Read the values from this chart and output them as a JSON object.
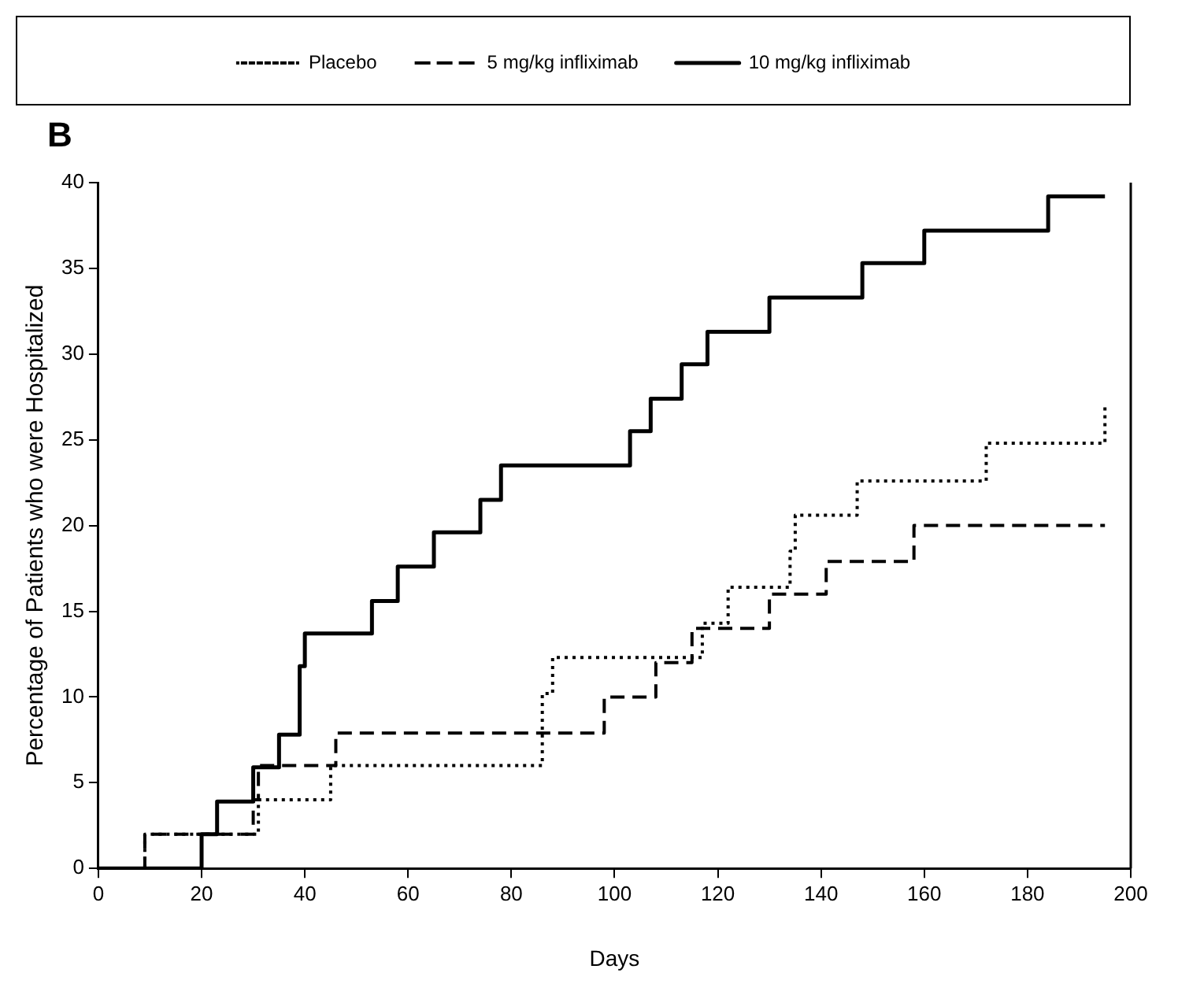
{
  "chart_data": {
    "type": "step",
    "xlabel": "Days",
    "ylabel": "Percentage of Patients who were Hospitalized",
    "annotations": [
      "B"
    ],
    "xlim": [
      0,
      200
    ],
    "xticks": [
      0,
      20,
      40,
      60,
      80,
      100,
      120,
      140,
      160,
      180,
      200
    ],
    "ylim": [
      0,
      40
    ],
    "yticks": [
      0,
      5,
      10,
      15,
      20,
      25,
      30,
      35,
      40
    ],
    "grid": false,
    "legend": "top",
    "marker": "none",
    "series": [
      {
        "name": "Placebo",
        "color": "#000000",
        "line_style": "dotted",
        "x": [
          0,
          9,
          31,
          45,
          86,
          88,
          117,
          122,
          134,
          135,
          147,
          172,
          195,
          195
        ],
        "values": [
          0,
          2,
          4,
          6,
          10.2,
          12.3,
          14.3,
          16.4,
          18.5,
          20.6,
          22.6,
          24.8,
          24.8,
          27
        ]
      },
      {
        "name": "5 mg/kg infliximab",
        "color": "#000000",
        "line_style": "dashed",
        "x": [
          0,
          9,
          30,
          31,
          46,
          98,
          108,
          115,
          130,
          141,
          158,
          195
        ],
        "values": [
          0,
          2,
          4,
          6,
          7.9,
          10,
          12,
          14,
          16,
          17.9,
          20,
          20
        ]
      },
      {
        "name": "10 mg/kg infliximab",
        "color": "#000000",
        "line_style": "solid",
        "x": [
          0,
          20,
          23,
          30,
          35,
          39,
          40,
          53,
          58,
          65,
          74,
          78,
          103,
          107,
          113,
          118,
          130,
          148,
          160,
          184,
          195
        ],
        "values": [
          0,
          2,
          3.9,
          5.9,
          7.8,
          11.8,
          13.7,
          15.6,
          17.6,
          19.6,
          21.5,
          23.5,
          25.5,
          27.4,
          29.4,
          31.3,
          33.3,
          35.3,
          37.2,
          39.2,
          39.2
        ]
      }
    ]
  }
}
